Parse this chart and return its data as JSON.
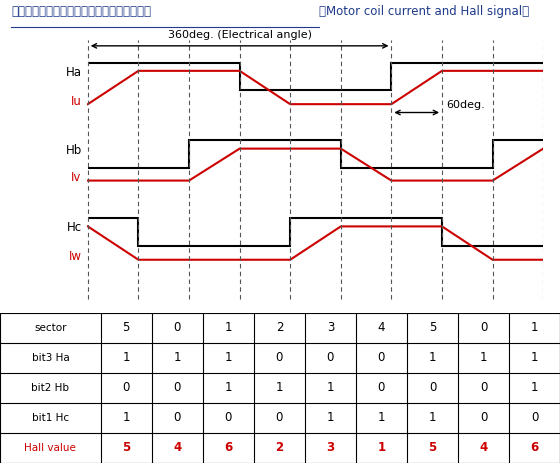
{
  "title_jp": "モータコイル電流とホール信号関係イメージ",
  "title_en": "（Motor coil current and Hall signal）",
  "title_color": "#1e3a8a",
  "black": "#000000",
  "red": "#cc0000",
  "dashed_color": "#555555",
  "bg_color": "#ffffff",
  "ha_bits": [
    1,
    1,
    1,
    0,
    0,
    0,
    1,
    1,
    1
  ],
  "hb_bits": [
    0,
    0,
    1,
    1,
    1,
    0,
    0,
    0,
    1
  ],
  "hc_bits": [
    1,
    0,
    0,
    0,
    1,
    1,
    1,
    0,
    0
  ],
  "table_rows": {
    "sector": [
      "5",
      "0",
      "1",
      "2",
      "3",
      "4",
      "5",
      "0",
      "1"
    ],
    "bit3 Ha": [
      "1",
      "1",
      "1",
      "0",
      "0",
      "0",
      "1",
      "1",
      "1"
    ],
    "bit2 Hb": [
      "0",
      "0",
      "1",
      "1",
      "1",
      "0",
      "0",
      "0",
      "1"
    ],
    "bit1 Hc": [
      "1",
      "0",
      "0",
      "0",
      "1",
      "1",
      "1",
      "0",
      "0"
    ],
    "Hall value": [
      "5",
      "4",
      "6",
      "2",
      "3",
      "1",
      "5",
      "4",
      "6"
    ]
  },
  "display_labels": [
    "sector",
    "bit3 Ha",
    "bit2 Hb",
    "bit1 Hc",
    "Hall value"
  ]
}
